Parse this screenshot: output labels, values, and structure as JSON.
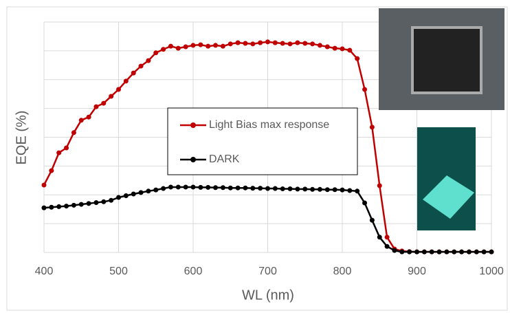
{
  "chart_data": {
    "type": "line",
    "x_label": "WL (nm)",
    "y_label": "EQE  (%)",
    "x": [
      400,
      410,
      420,
      430,
      440,
      450,
      460,
      470,
      480,
      490,
      500,
      510,
      520,
      530,
      540,
      550,
      560,
      570,
      580,
      590,
      600,
      610,
      620,
      630,
      640,
      650,
      660,
      670,
      680,
      690,
      700,
      710,
      720,
      730,
      740,
      750,
      760,
      770,
      780,
      790,
      800,
      810,
      820,
      830,
      840,
      850,
      860,
      870,
      880,
      890,
      900,
      910,
      920,
      930,
      940,
      950,
      960,
      970,
      980,
      990,
      1000
    ],
    "series": [
      {
        "name": "Light Bias max response",
        "color": "#c00000",
        "values": [
          23.4,
          28.4,
          34.6,
          36.3,
          41.6,
          45.9,
          47.0,
          50.6,
          51.8,
          54.2,
          56.6,
          59.5,
          62.3,
          64.7,
          66.6,
          69.3,
          70.5,
          71.6,
          70.9,
          71.4,
          71.9,
          72.1,
          71.6,
          71.9,
          71.6,
          72.4,
          72.8,
          72.6,
          72.4,
          72.8,
          73.1,
          72.8,
          72.6,
          72.4,
          72.8,
          72.6,
          72.4,
          71.9,
          71.4,
          70.9,
          70.7,
          70.2,
          67.3,
          56.6,
          43.5,
          23.2,
          5.3,
          1.2,
          0.5,
          0.3,
          0.2,
          0.2,
          0.2,
          0.2,
          0.2,
          0.2,
          0.2,
          0.2,
          0.2,
          0.2,
          0.2
        ]
      },
      {
        "name": "DARK",
        "color": "#000000",
        "values": [
          15.5,
          15.7,
          15.9,
          16.1,
          16.4,
          16.7,
          17.0,
          17.3,
          17.6,
          18.1,
          19.1,
          19.7,
          20.3,
          20.8,
          21.3,
          21.7,
          22.2,
          22.7,
          22.7,
          22.7,
          22.7,
          22.6,
          22.6,
          22.5,
          22.5,
          22.4,
          22.4,
          22.4,
          22.3,
          22.3,
          22.2,
          22.2,
          22.1,
          22.1,
          22.0,
          22.0,
          21.9,
          21.9,
          21.8,
          21.8,
          21.7,
          21.5,
          21.3,
          17.2,
          11.2,
          5.3,
          2.1,
          0.7,
          0.2,
          0.2,
          0.2,
          0.2,
          0.2,
          0.2,
          0.2,
          0.2,
          0.2,
          0.2,
          0.2,
          0.2,
          0.2
        ]
      }
    ],
    "xlim": [
      400,
      1000
    ],
    "xticks": [
      400,
      500,
      600,
      700,
      800,
      900,
      1000
    ],
    "ylim": [
      0,
      80
    ],
    "yticks": [
      0,
      10,
      20,
      30,
      40,
      50,
      60,
      70,
      80
    ],
    "grid": true,
    "legend": "center"
  }
}
